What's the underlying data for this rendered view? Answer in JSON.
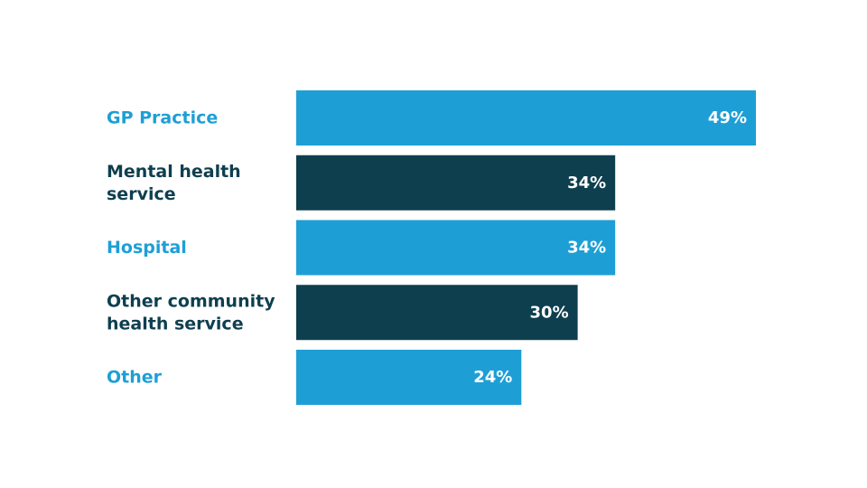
{
  "chart_data": {
    "type": "bar",
    "orientation": "horizontal",
    "categories": [
      [
        "GP Practice"
      ],
      [
        "Mental health",
        "service"
      ],
      [
        "Hospital"
      ],
      [
        "Other community",
        "health service"
      ],
      [
        "Other"
      ]
    ],
    "values": [
      49,
      34,
      34,
      30,
      24
    ],
    "value_labels": [
      "49%",
      "34%",
      "34%",
      "30%",
      "24%"
    ],
    "unit": "%",
    "title": "",
    "xlabel": "",
    "ylabel": "",
    "xlim": [
      0,
      49
    ],
    "grid": false,
    "legend": "none",
    "colors": [
      "#1d9fd6",
      "#0e3f4f",
      "#1d9fd6",
      "#0e3f4f",
      "#1d9fd6"
    ]
  }
}
